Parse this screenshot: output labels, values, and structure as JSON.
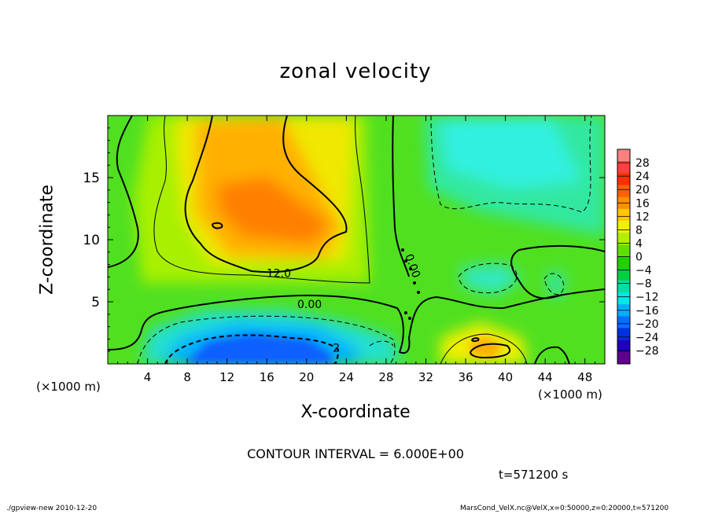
{
  "chart_data": {
    "type": "heatmap",
    "title": "zonal velocity",
    "xlabel": "X-coordinate",
    "ylabel": "Z-coordinate",
    "xunit": "(×1000 m)",
    "x_tick_labels": [
      "4",
      "8",
      "12",
      "16",
      "20",
      "24",
      "28",
      "32",
      "36",
      "40",
      "44",
      "48"
    ],
    "x_ticks": [
      4,
      8,
      12,
      16,
      20,
      24,
      28,
      32,
      36,
      40,
      44,
      48
    ],
    "xlim": [
      0,
      50
    ],
    "y_tick_labels": [
      "5",
      "10",
      "15"
    ],
    "y_ticks": [
      5,
      10,
      15
    ],
    "ylim": [
      0,
      20
    ],
    "colorbar_labels": [
      "28",
      "24",
      "20",
      "16",
      "12",
      "8",
      "4",
      "0",
      "−4",
      "−8",
      "−12",
      "−16",
      "−20",
      "−24",
      "−28"
    ],
    "colorbar_values": [
      28,
      24,
      20,
      16,
      12,
      8,
      4,
      0,
      -4,
      -8,
      -12,
      -16,
      -20,
      -24,
      -28
    ],
    "colorbar_colors": [
      "#ff8080",
      "#ff4040",
      "#ff3000",
      "#ff6000",
      "#ff9000",
      "#ffc800",
      "#f0f000",
      "#b0f000",
      "#60e000",
      "#20d000",
      "#00d040",
      "#00e0a0",
      "#00e8e8",
      "#00b0ff",
      "#0070ff",
      "#0030e0",
      "#2000c0",
      "#600090"
    ],
    "contour_labels": [
      {
        "text": "12.0",
        "x": 17.2,
        "y": 7.3
      },
      {
        "text": "0.00",
        "x": 20.3,
        "y": 4.8
      },
      {
        "text": "0.00",
        "x": 30.7,
        "y": 7.9
      },
      {
        "text": "2",
        "x": 23.0,
        "y": 1.3
      }
    ],
    "contour_interval": "CONTOUR INTERVAL = 6.000E+00",
    "time": "t=571200 s",
    "features": [
      {
        "kind": "max",
        "x": 16,
        "y": 12.5,
        "value": 14
      },
      {
        "kind": "max",
        "x": 38.5,
        "y": 1.5,
        "value": 12
      },
      {
        "kind": "min",
        "x": 17,
        "y": 1.2,
        "value": -18
      },
      {
        "kind": "min",
        "x": 38,
        "y": 16,
        "value": -9
      },
      {
        "kind": "min",
        "x": 38,
        "y": 7,
        "value": -8
      }
    ]
  },
  "footer": {
    "left": "./gpview-new  2010-12-20",
    "right": "MarsCond_VelX.nc@VelX,x=0:50000,z=0:20000,t=571200"
  }
}
